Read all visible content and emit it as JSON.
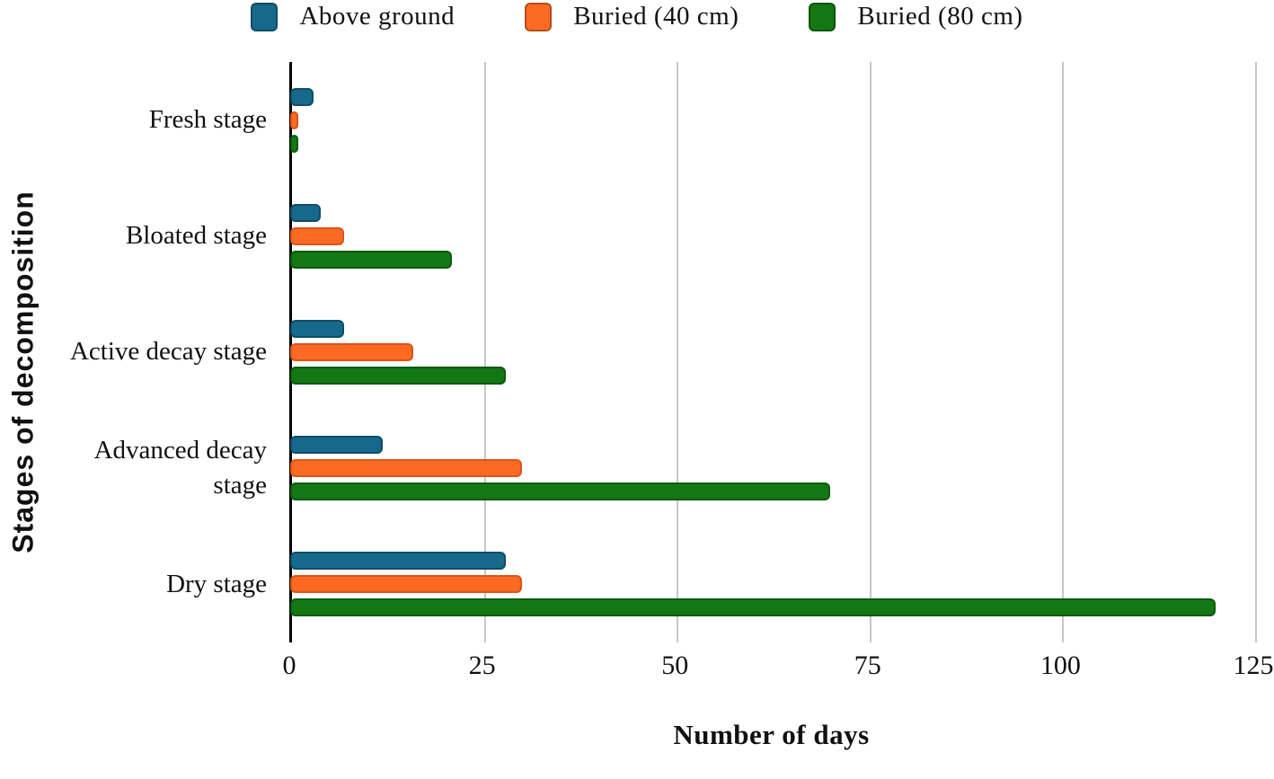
{
  "chart_data": {
    "type": "bar",
    "orientation": "horizontal",
    "title": "",
    "xlabel": "Number of days",
    "ylabel": "Stages of decomposition",
    "xlim": [
      0,
      125
    ],
    "xticks": [
      0,
      25,
      50,
      75,
      100,
      125
    ],
    "grid": "vertical",
    "legend_position": "top",
    "categories": [
      "Fresh stage",
      "Bloated stage",
      "Active decay stage",
      "Advanced decay stage",
      "Dry stage"
    ],
    "series": [
      {
        "name": "Above ground",
        "color": "#17698c",
        "border_color": "#0f4d68",
        "values": [
          3,
          4,
          7,
          12,
          28
        ]
      },
      {
        "name": "Buried (40 cm)",
        "color": "#fb6a23",
        "border_color": "#d9561a",
        "values": [
          1,
          7,
          16,
          30,
          30
        ]
      },
      {
        "name": "Buried (80 cm)",
        "color": "#137813",
        "border_color": "#0b5a0e",
        "values": [
          1,
          21,
          28,
          70,
          120
        ]
      }
    ],
    "axis_color": "#000000",
    "gridline_color": "#c6c6c6"
  }
}
